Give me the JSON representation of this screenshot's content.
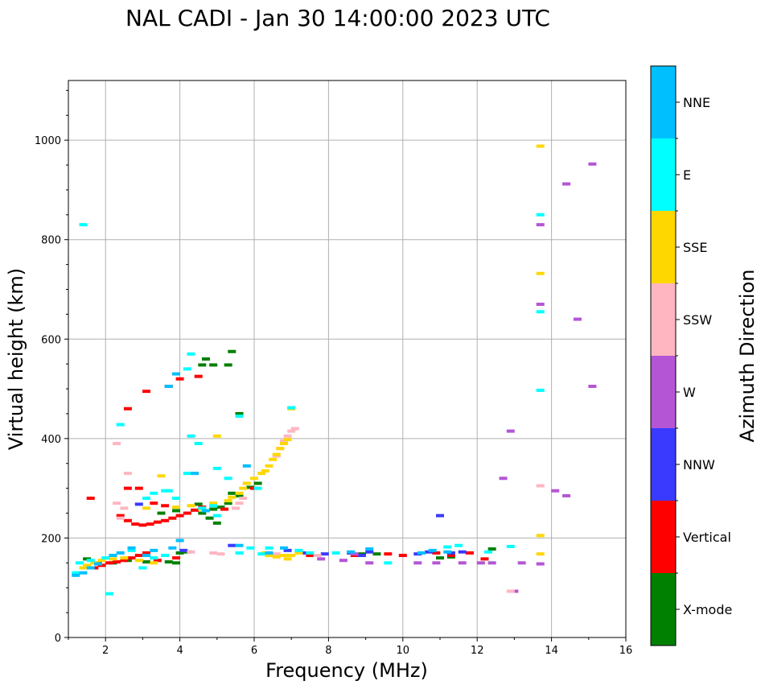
{
  "chart_data": {
    "type": "scatter",
    "title": "NAL CADI - Jan 30 14:00:00 2023 UTC",
    "xlabel": "Frequency (MHz)",
    "ylabel": "Virtual height (km)",
    "xlim": [
      1,
      16
    ],
    "ylim": [
      0,
      1120
    ],
    "xticks": [
      2,
      4,
      6,
      8,
      10,
      12,
      14,
      16
    ],
    "yticks": [
      0,
      200,
      400,
      600,
      800,
      1000
    ],
    "grid": true,
    "colorbar": {
      "label": "Azimuth Direction",
      "categories": [
        {
          "name": "X-mode",
          "color": "#008000"
        },
        {
          "name": "Vertical",
          "color": "#ff0000"
        },
        {
          "name": "NNW",
          "color": "#3a3aff"
        },
        {
          "name": "W",
          "color": "#b455d6"
        },
        {
          "name": "SSW",
          "color": "#ffb6c1"
        },
        {
          "name": "SSE",
          "color": "#ffd700"
        },
        {
          "name": "E",
          "color": "#00ffff"
        },
        {
          "name": "NNE",
          "color": "#00bfff"
        }
      ]
    },
    "series": [
      {
        "name": "X-mode",
        "points": [
          [
            2.2,
            150
          ],
          [
            2.6,
            155
          ],
          [
            3.1,
            152
          ],
          [
            3.7,
            152
          ],
          [
            3.9,
            150
          ],
          [
            4.0,
            170
          ],
          [
            4.2,
            172
          ],
          [
            4.6,
            250
          ],
          [
            4.9,
            258
          ],
          [
            5.1,
            262
          ],
          [
            5.3,
            270
          ],
          [
            5.4,
            290
          ],
          [
            5.6,
            285
          ],
          [
            5.0,
            230
          ],
          [
            4.7,
            560
          ],
          [
            4.9,
            548
          ],
          [
            5.4,
            575
          ],
          [
            5.6,
            450
          ],
          [
            4.6,
            548
          ],
          [
            5.9,
            302
          ],
          [
            5.3,
            548
          ],
          [
            6.1,
            310
          ],
          [
            4.8,
            240
          ],
          [
            8.9,
            168
          ],
          [
            9.3,
            168
          ],
          [
            11.0,
            160
          ],
          [
            11.3,
            162
          ],
          [
            12.4,
            178
          ],
          [
            1.8,
            150
          ],
          [
            1.5,
            158
          ],
          [
            3.5,
            250
          ],
          [
            3.9,
            255
          ],
          [
            4.5,
            268
          ]
        ]
      },
      {
        "name": "Vertical",
        "points": [
          [
            1.6,
            280
          ],
          [
            2.4,
            245
          ],
          [
            2.6,
            235
          ],
          [
            2.8,
            228
          ],
          [
            3.0,
            226
          ],
          [
            3.2,
            228
          ],
          [
            3.4,
            232
          ],
          [
            3.6,
            235
          ],
          [
            3.8,
            240
          ],
          [
            4.0,
            245
          ],
          [
            4.2,
            250
          ],
          [
            4.4,
            256
          ],
          [
            4.6,
            262
          ],
          [
            1.7,
            140
          ],
          [
            1.9,
            145
          ],
          [
            2.1,
            150
          ],
          [
            2.3,
            152
          ],
          [
            2.5,
            155
          ],
          [
            2.7,
            160
          ],
          [
            2.9,
            165
          ],
          [
            3.1,
            170
          ],
          [
            3.4,
            155
          ],
          [
            3.9,
            160
          ],
          [
            4.0,
            520
          ],
          [
            3.7,
            505
          ],
          [
            3.1,
            495
          ],
          [
            4.5,
            525
          ],
          [
            2.6,
            460
          ],
          [
            2.6,
            300
          ],
          [
            2.9,
            300
          ],
          [
            3.3,
            270
          ],
          [
            3.6,
            265
          ],
          [
            6.0,
            300
          ],
          [
            6.4,
            168
          ],
          [
            7.5,
            165
          ],
          [
            9.6,
            168
          ],
          [
            10.0,
            165
          ],
          [
            10.9,
            170
          ],
          [
            11.3,
            165
          ],
          [
            11.8,
            170
          ],
          [
            12.2,
            158
          ],
          [
            5.2,
            258
          ],
          [
            8.7,
            165
          ]
        ]
      },
      {
        "name": "NNW",
        "points": [
          [
            2.9,
            268
          ],
          [
            7.4,
            170
          ],
          [
            7.9,
            168
          ],
          [
            8.6,
            170
          ],
          [
            8.9,
            165
          ],
          [
            9.1,
            172
          ],
          [
            10.4,
            168
          ],
          [
            10.7,
            172
          ],
          [
            11.3,
            170
          ],
          [
            11.6,
            172
          ],
          [
            11.0,
            245
          ],
          [
            4.1,
            175
          ],
          [
            6.9,
            175
          ],
          [
            5.4,
            185
          ]
        ]
      },
      {
        "name": "W",
        "points": [
          [
            8.4,
            155
          ],
          [
            8.7,
            168
          ],
          [
            9.1,
            150
          ],
          [
            10.4,
            150
          ],
          [
            10.9,
            150
          ],
          [
            11.6,
            150
          ],
          [
            12.1,
            150
          ],
          [
            12.4,
            150
          ],
          [
            13.0,
            93
          ],
          [
            13.2,
            150
          ],
          [
            12.7,
            320
          ],
          [
            12.9,
            415
          ],
          [
            13.7,
            670
          ],
          [
            13.7,
            830
          ],
          [
            14.1,
            295
          ],
          [
            14.4,
            285
          ],
          [
            14.4,
            912
          ],
          [
            14.7,
            640
          ],
          [
            15.1,
            505
          ],
          [
            15.1,
            952
          ],
          [
            13.7,
            148
          ],
          [
            7.8,
            158
          ]
        ]
      },
      {
        "name": "SSW",
        "points": [
          [
            2.3,
            270
          ],
          [
            2.5,
            260
          ],
          [
            2.4,
            240
          ],
          [
            2.6,
            330
          ],
          [
            5.5,
            260
          ],
          [
            5.6,
            270
          ],
          [
            5.7,
            280
          ],
          [
            6.6,
            365
          ],
          [
            6.7,
            380
          ],
          [
            6.8,
            395
          ],
          [
            6.9,
            405
          ],
          [
            7.0,
            415
          ],
          [
            7.1,
            420
          ],
          [
            4.3,
            172
          ],
          [
            4.9,
            170
          ],
          [
            5.1,
            168
          ],
          [
            6.6,
            168
          ],
          [
            7.7,
            165
          ],
          [
            13.7,
            305
          ],
          [
            12.9,
            93
          ],
          [
            2.3,
            390
          ]
        ]
      },
      {
        "name": "SSE",
        "points": [
          [
            1.4,
            140
          ],
          [
            1.5,
            145
          ],
          [
            1.7,
            150
          ],
          [
            1.9,
            155
          ],
          [
            2.2,
            158
          ],
          [
            2.5,
            160
          ],
          [
            2.9,
            155
          ],
          [
            3.1,
            260
          ],
          [
            3.5,
            325
          ],
          [
            4.3,
            265
          ],
          [
            4.6,
            258
          ],
          [
            4.9,
            270
          ],
          [
            5.3,
            275
          ],
          [
            5.4,
            282
          ],
          [
            5.6,
            290
          ],
          [
            5.7,
            300
          ],
          [
            5.8,
            310
          ],
          [
            6.0,
            320
          ],
          [
            6.2,
            330
          ],
          [
            6.3,
            335
          ],
          [
            6.4,
            345
          ],
          [
            6.5,
            358
          ],
          [
            6.6,
            368
          ],
          [
            6.7,
            380
          ],
          [
            6.8,
            390
          ],
          [
            6.9,
            398
          ],
          [
            7.0,
            460
          ],
          [
            6.3,
            170
          ],
          [
            6.4,
            165
          ],
          [
            6.6,
            162
          ],
          [
            6.8,
            165
          ],
          [
            7.0,
            165
          ],
          [
            7.2,
            170
          ],
          [
            6.9,
            158
          ],
          [
            3.3,
            150
          ],
          [
            3.9,
            262
          ],
          [
            5.0,
            405
          ],
          [
            13.7,
            205
          ],
          [
            13.7,
            168
          ],
          [
            13.7,
            732
          ],
          [
            13.7,
            988
          ]
        ]
      },
      {
        "name": "E",
        "points": [
          [
            1.4,
            830
          ],
          [
            1.2,
            130
          ],
          [
            1.3,
            150
          ],
          [
            1.6,
            155
          ],
          [
            2.0,
            160
          ],
          [
            2.1,
            88
          ],
          [
            2.4,
            428
          ],
          [
            2.7,
            175
          ],
          [
            3.0,
            140
          ],
          [
            3.3,
            160
          ],
          [
            3.6,
            165
          ],
          [
            3.1,
            280
          ],
          [
            3.3,
            290
          ],
          [
            3.6,
            295
          ],
          [
            3.9,
            280
          ],
          [
            4.2,
            330
          ],
          [
            4.3,
            570
          ],
          [
            4.2,
            540
          ],
          [
            4.3,
            405
          ],
          [
            4.6,
            260
          ],
          [
            4.9,
            265
          ],
          [
            5.0,
            340
          ],
          [
            5.0,
            245
          ],
          [
            5.3,
            320
          ],
          [
            5.6,
            445
          ],
          [
            5.6,
            170
          ],
          [
            5.9,
            180
          ],
          [
            6.1,
            300
          ],
          [
            6.2,
            168
          ],
          [
            6.4,
            180
          ],
          [
            7.0,
            462
          ],
          [
            7.2,
            175
          ],
          [
            7.5,
            170
          ],
          [
            8.2,
            170
          ],
          [
            9.6,
            150
          ],
          [
            13.7,
            850
          ],
          [
            13.7,
            655
          ],
          [
            13.7,
            497
          ],
          [
            12.9,
            183
          ],
          [
            11.5,
            185
          ],
          [
            12.3,
            172
          ],
          [
            11.2,
            182
          ],
          [
            4.5,
            390
          ],
          [
            3.7,
            295
          ]
        ]
      },
      {
        "name": "NNE",
        "points": [
          [
            1.2,
            125
          ],
          [
            1.4,
            130
          ],
          [
            1.6,
            140
          ],
          [
            1.8,
            148
          ],
          [
            2.2,
            165
          ],
          [
            2.4,
            170
          ],
          [
            2.7,
            180
          ],
          [
            3.1,
            165
          ],
          [
            3.3,
            175
          ],
          [
            3.8,
            180
          ],
          [
            4.0,
            195
          ],
          [
            3.9,
            530
          ],
          [
            4.4,
            330
          ],
          [
            5.6,
            185
          ],
          [
            5.8,
            345
          ],
          [
            6.4,
            170
          ],
          [
            6.8,
            180
          ],
          [
            8.6,
            172
          ],
          [
            9.1,
            178
          ],
          [
            10.5,
            170
          ],
          [
            10.8,
            175
          ],
          [
            11.2,
            172
          ],
          [
            3.7,
            505
          ],
          [
            4.7,
            255
          ]
        ]
      }
    ]
  }
}
